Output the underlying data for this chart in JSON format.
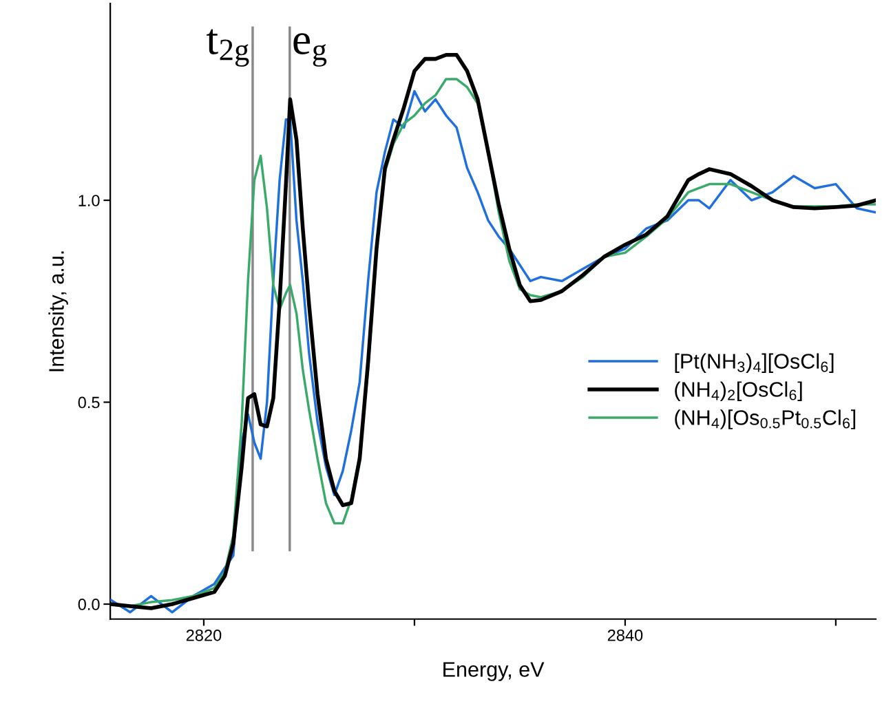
{
  "chart_data": {
    "type": "line",
    "xlabel": "Energy, eV",
    "ylabel": "Intensity, a.u.",
    "x": [
      2815.6,
      2816.5,
      2817.5,
      2818.5,
      2819.5,
      2820.5,
      2821.0,
      2821.4,
      2821.8,
      2822.1,
      2822.4,
      2822.7,
      2823.0,
      2823.3,
      2823.6,
      2823.9,
      2824.1,
      2824.4,
      2824.7,
      2825.0,
      2825.4,
      2825.8,
      2826.2,
      2826.6,
      2827.0,
      2827.4,
      2827.8,
      2828.2,
      2828.6,
      2829.0,
      2829.5,
      2830.0,
      2830.5,
      2831.0,
      2831.5,
      2832.0,
      2832.5,
      2833.0,
      2833.5,
      2834.0,
      2834.5,
      2835.0,
      2835.5,
      2836.0,
      2837,
      2838,
      2839,
      2840,
      2841,
      2842,
      2843,
      2843.5,
      2844,
      2845,
      2846,
      2847,
      2848,
      2849,
      2850,
      2851,
      2851.9
    ],
    "series": [
      {
        "name": "[Pt(NH$_{3}$)$_{4}$][OsCl$_{6}$]",
        "color": "#1f6fde",
        "values": [
          0.01,
          -0.02,
          0.02,
          -0.02,
          0.02,
          0.05,
          0.09,
          0.12,
          0.4,
          0.47,
          0.4,
          0.36,
          0.5,
          0.8,
          1.05,
          1.2,
          1.2,
          0.95,
          0.8,
          0.62,
          0.45,
          0.34,
          0.27,
          0.33,
          0.43,
          0.55,
          0.8,
          1.02,
          1.12,
          1.2,
          1.18,
          1.27,
          1.22,
          1.25,
          1.21,
          1.18,
          1.08,
          1.02,
          0.95,
          0.91,
          0.88,
          0.84,
          0.8,
          0.81,
          0.8,
          0.83,
          0.86,
          0.88,
          0.93,
          0.95,
          1.0,
          1.0,
          0.98,
          1.05,
          1.0,
          1.02,
          1.06,
          1.03,
          1.04,
          0.98,
          0.97
        ]
      },
      {
        "name": "(NH$_{4}$)$_{2}$[OsCl$_{6}$]",
        "color": "#000000",
        "values": [
          0.0,
          -0.005,
          -0.01,
          0.0,
          0.015,
          0.03,
          0.07,
          0.15,
          0.34,
          0.51,
          0.52,
          0.445,
          0.44,
          0.51,
          0.75,
          1.04,
          1.25,
          1.15,
          0.93,
          0.74,
          0.52,
          0.36,
          0.28,
          0.245,
          0.25,
          0.36,
          0.6,
          0.88,
          1.08,
          1.15,
          1.23,
          1.32,
          1.35,
          1.35,
          1.36,
          1.36,
          1.32,
          1.25,
          1.12,
          0.99,
          0.88,
          0.79,
          0.75,
          0.753,
          0.775,
          0.815,
          0.86,
          0.89,
          0.915,
          0.96,
          1.05,
          1.065,
          1.077,
          1.065,
          1.035,
          1.0,
          0.983,
          0.98,
          0.983,
          0.987,
          1.0
        ]
      },
      {
        "name": "(NH$_{4}$)[Os$_{0.5}$Pt$_{0.5}$Cl$_{6}$]",
        "color": "#3aaa6a",
        "values": [
          0.0,
          -0.005,
          0.005,
          0.01,
          0.02,
          0.04,
          0.08,
          0.17,
          0.45,
          0.8,
          1.05,
          1.11,
          0.98,
          0.79,
          0.73,
          0.77,
          0.79,
          0.72,
          0.58,
          0.48,
          0.36,
          0.25,
          0.2,
          0.2,
          0.26,
          0.37,
          0.58,
          0.88,
          1.07,
          1.14,
          1.19,
          1.21,
          1.24,
          1.26,
          1.3,
          1.3,
          1.28,
          1.24,
          1.12,
          0.97,
          0.85,
          0.78,
          0.765,
          0.76,
          0.775,
          0.81,
          0.86,
          0.87,
          0.91,
          0.955,
          1.02,
          1.03,
          1.04,
          1.04,
          1.02,
          1.0,
          0.985,
          0.985,
          0.985,
          0.99,
          0.99
        ]
      }
    ],
    "xlim": [
      2815.56,
      2851.9
    ],
    "ylim": [
      -0.037,
      1.487
    ],
    "xticks": [
      2820,
      {
        "value": 2830,
        "label": null
      },
      2840,
      {
        "value": 2850,
        "label": null
      }
    ],
    "yticks": [
      {
        "value": 0,
        "label": "0.0"
      },
      {
        "value": 0.5,
        "label": "0.5"
      },
      {
        "value": 1,
        "label": "1.0"
      }
    ],
    "ref_lines": [
      {
        "axis": "x",
        "value": 2822.32,
        "label": "t$_{2g}$",
        "color": "#888888"
      },
      {
        "axis": "x",
        "value": 2824.08,
        "label": "e$_{g}$",
        "color": "#888888"
      }
    ],
    "legend": "center right",
    "grid": false,
    "marker": "none",
    "line_style": "solid"
  }
}
